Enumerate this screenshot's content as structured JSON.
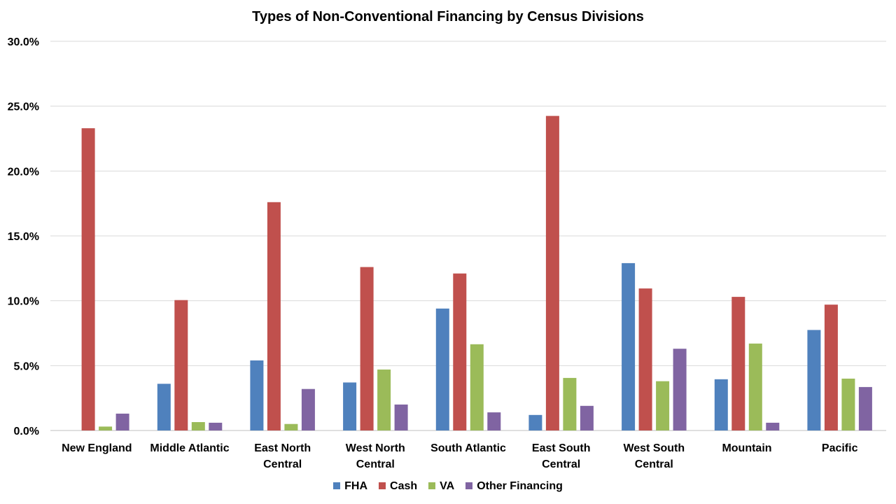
{
  "chart_data": {
    "type": "bar",
    "title": "Types of Non-Conventional Financing by Census Divisions",
    "categories": [
      [
        "New England"
      ],
      [
        "Middle Atlantic"
      ],
      [
        "East North",
        "Central"
      ],
      [
        "West North",
        "Central"
      ],
      [
        "South Atlantic"
      ],
      [
        "East South",
        "Central"
      ],
      [
        "West South",
        "Central"
      ],
      [
        "Mountain"
      ],
      [
        "Pacific"
      ]
    ],
    "series": [
      {
        "name": "FHA",
        "color": "#4f81bd",
        "values": [
          0.0,
          3.6,
          5.4,
          3.7,
          9.4,
          1.2,
          12.9,
          3.95,
          7.75
        ]
      },
      {
        "name": "Cash",
        "color": "#c0504d",
        "values": [
          23.3,
          10.05,
          17.6,
          12.6,
          12.1,
          24.25,
          10.95,
          10.3,
          9.7
        ]
      },
      {
        "name": "VA",
        "color": "#9bbb59",
        "values": [
          0.3,
          0.65,
          0.5,
          4.7,
          6.65,
          4.05,
          3.8,
          6.7,
          4.0
        ]
      },
      {
        "name": "Other Financing",
        "color": "#8064a2",
        "values": [
          1.3,
          0.6,
          3.2,
          2.0,
          1.4,
          1.9,
          6.3,
          0.6,
          3.35
        ]
      }
    ],
    "ylim": [
      0,
      30
    ],
    "yticks": [
      "0.0%",
      "5.0%",
      "10.0%",
      "15.0%",
      "20.0%",
      "25.0%",
      "30.0%"
    ],
    "grid": true,
    "legend": "bottom"
  }
}
